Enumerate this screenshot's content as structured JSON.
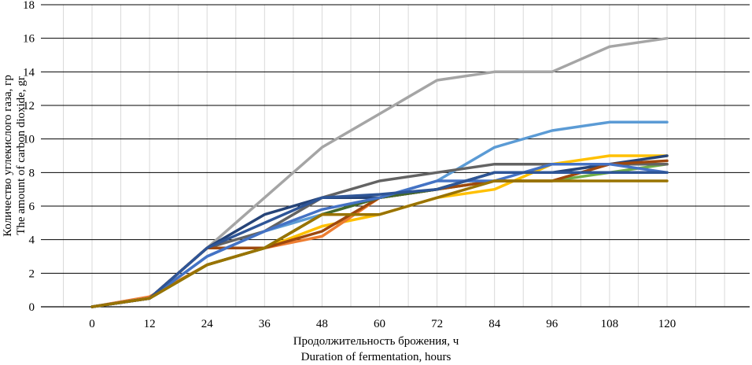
{
  "chart_data": {
    "type": "line",
    "xlabel": [
      "Продолжительность брожения, ч",
      "Duration of fermentation, hours"
    ],
    "ylabel": [
      "Количество углекислого газа, гр",
      "The amount of carbon dioxide, gr"
    ],
    "x": [
      0,
      12,
      24,
      36,
      48,
      60,
      72,
      84,
      96,
      108,
      120
    ],
    "xlim": [
      0,
      120
    ],
    "ylim": [
      0,
      18
    ],
    "yticks": [
      0,
      2,
      4,
      6,
      8,
      10,
      12,
      14,
      16,
      18
    ],
    "grid": "horizontal major + vertical minor",
    "legend": "none",
    "series": [
      {
        "color": "#a5a5a5",
        "values": [
          0,
          0.5,
          3.5,
          6.5,
          9.5,
          11.5,
          13.5,
          14,
          14,
          15.5,
          16
        ]
      },
      {
        "color": "#5b9bd5",
        "values": [
          0,
          0.5,
          3,
          4.5,
          5.5,
          6.5,
          7.5,
          9.5,
          10.5,
          11,
          11
        ]
      },
      {
        "color": "#ffc000",
        "values": [
          0,
          0.5,
          2.5,
          3.5,
          4.8,
          5.5,
          6.5,
          7,
          8.5,
          9,
          9
        ]
      },
      {
        "color": "#ed7d31",
        "values": [
          0,
          0.6,
          2.5,
          3.5,
          4.2,
          6.5,
          7,
          7.5,
          7.5,
          8.5,
          8.5
        ]
      },
      {
        "color": "#70ad47",
        "values": [
          0,
          0.5,
          2.5,
          3.5,
          5.5,
          6.5,
          7,
          7.5,
          7.5,
          8,
          8.5
        ]
      },
      {
        "color": "#264478",
        "values": [
          0,
          0.5,
          3.5,
          5.5,
          6.5,
          6.5,
          7,
          8,
          8,
          8.5,
          9
        ]
      },
      {
        "color": "#636363",
        "values": [
          0,
          0.5,
          3.5,
          4.5,
          6.5,
          7.5,
          8,
          8.5,
          8.5,
          8.5,
          8.5
        ]
      },
      {
        "color": "#9e480e",
        "values": [
          0,
          0.5,
          3.5,
          3.5,
          4.5,
          6.5,
          7,
          7.5,
          7.5,
          8.5,
          8.7
        ]
      },
      {
        "color": "#43682b",
        "values": [
          0,
          0.5,
          2.5,
          3.5,
          5.5,
          6.5,
          7,
          8,
          8,
          8,
          8
        ]
      },
      {
        "color": "#4472c4",
        "values": [
          0,
          0.5,
          3,
          4.5,
          5.8,
          6.5,
          7.5,
          7.5,
          8.5,
          8.5,
          8
        ]
      },
      {
        "color": "#2e5597",
        "values": [
          0,
          0.5,
          3.5,
          5,
          6.5,
          6.7,
          7,
          8,
          8,
          8,
          8
        ]
      },
      {
        "color": "#997300",
        "values": [
          0,
          0.5,
          2.5,
          3.5,
          5.5,
          5.5,
          6.5,
          7.5,
          7.5,
          7.5,
          7.5
        ]
      }
    ]
  }
}
